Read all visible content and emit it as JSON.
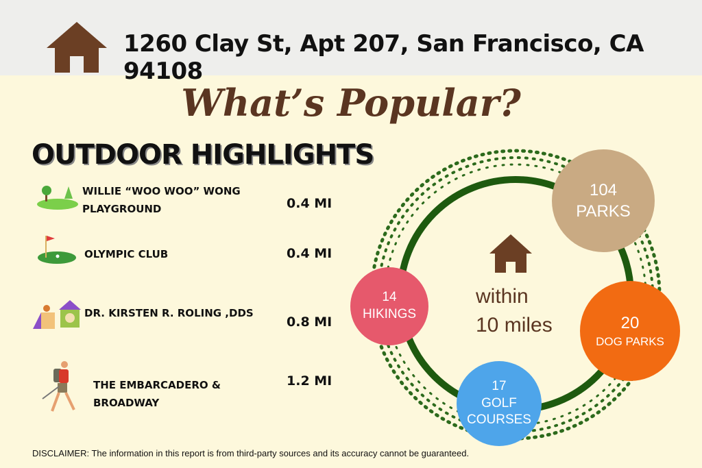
{
  "header": {
    "address": "1260 Clay St, Apt 207, San Francisco, CA 94108",
    "icon": "house-icon"
  },
  "title": "What’s Popular?",
  "section_title": "OUTDOOR HIGHLIGHTS",
  "highlights": [
    {
      "name": "WILLIE “WOO WOO” WONG PLAYGROUND",
      "distance": "0.4 MI",
      "icon": "park-icon"
    },
    {
      "name": "OLYMPIC CLUB",
      "distance": "0.4 MI",
      "icon": "golf-icon"
    },
    {
      "name": "DR. KIRSTEN R. ROLING ,DDS",
      "distance": "0.8 MI",
      "icon": "dog-park-icon"
    },
    {
      "name": "THE EMBARCADERO & BROADWAY",
      "distance": "1.2 MI",
      "icon": "hiker-icon"
    }
  ],
  "center": {
    "label": "within 10 miles"
  },
  "stats": [
    {
      "count": "104",
      "label": "PARKS",
      "color": "#c9aa83"
    },
    {
      "count": "20",
      "label": "DOG PARKS",
      "color": "#f26b12"
    },
    {
      "count": "17",
      "label": "GOLF COURSES",
      "color": "#4ea5ea"
    },
    {
      "count": "14",
      "label": "HIKINGS",
      "color": "#e6596c"
    }
  ],
  "disclaimer": "DISCLAIMER: The information in this report is from third-party sources and its accuracy cannot be guaranteed."
}
